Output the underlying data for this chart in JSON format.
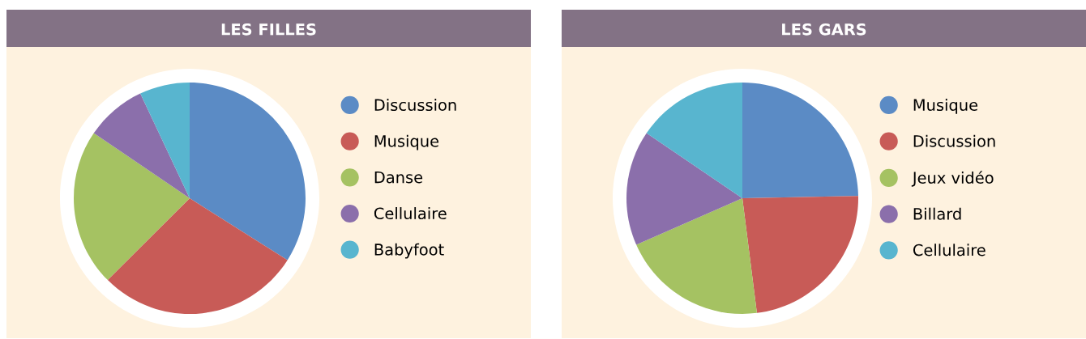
{
  "chart_data": [
    {
      "type": "pie",
      "title": "LES FILLES",
      "categories": [
        "Discussion",
        "Musique",
        "Danse",
        "Cellulaire",
        "Babyfoot"
      ],
      "values": [
        34,
        28.5,
        22,
        8.5,
        7
      ],
      "colors": [
        "#5b8bc5",
        "#c85b57",
        "#a5c262",
        "#8b6fab",
        "#58b5cf"
      ],
      "legend": "right"
    },
    {
      "type": "pie",
      "title": "LES GARS",
      "categories": [
        "Musique",
        "Discussion",
        "Jeux vidéo",
        "Billard",
        "Cellulaire"
      ],
      "values": [
        24.7,
        23.3,
        20.4,
        16.1,
        15.5
      ],
      "colors": [
        "#5b8bc5",
        "#c85b57",
        "#a5c262",
        "#8b6fab",
        "#58b5cf"
      ],
      "legend": "right"
    }
  ]
}
